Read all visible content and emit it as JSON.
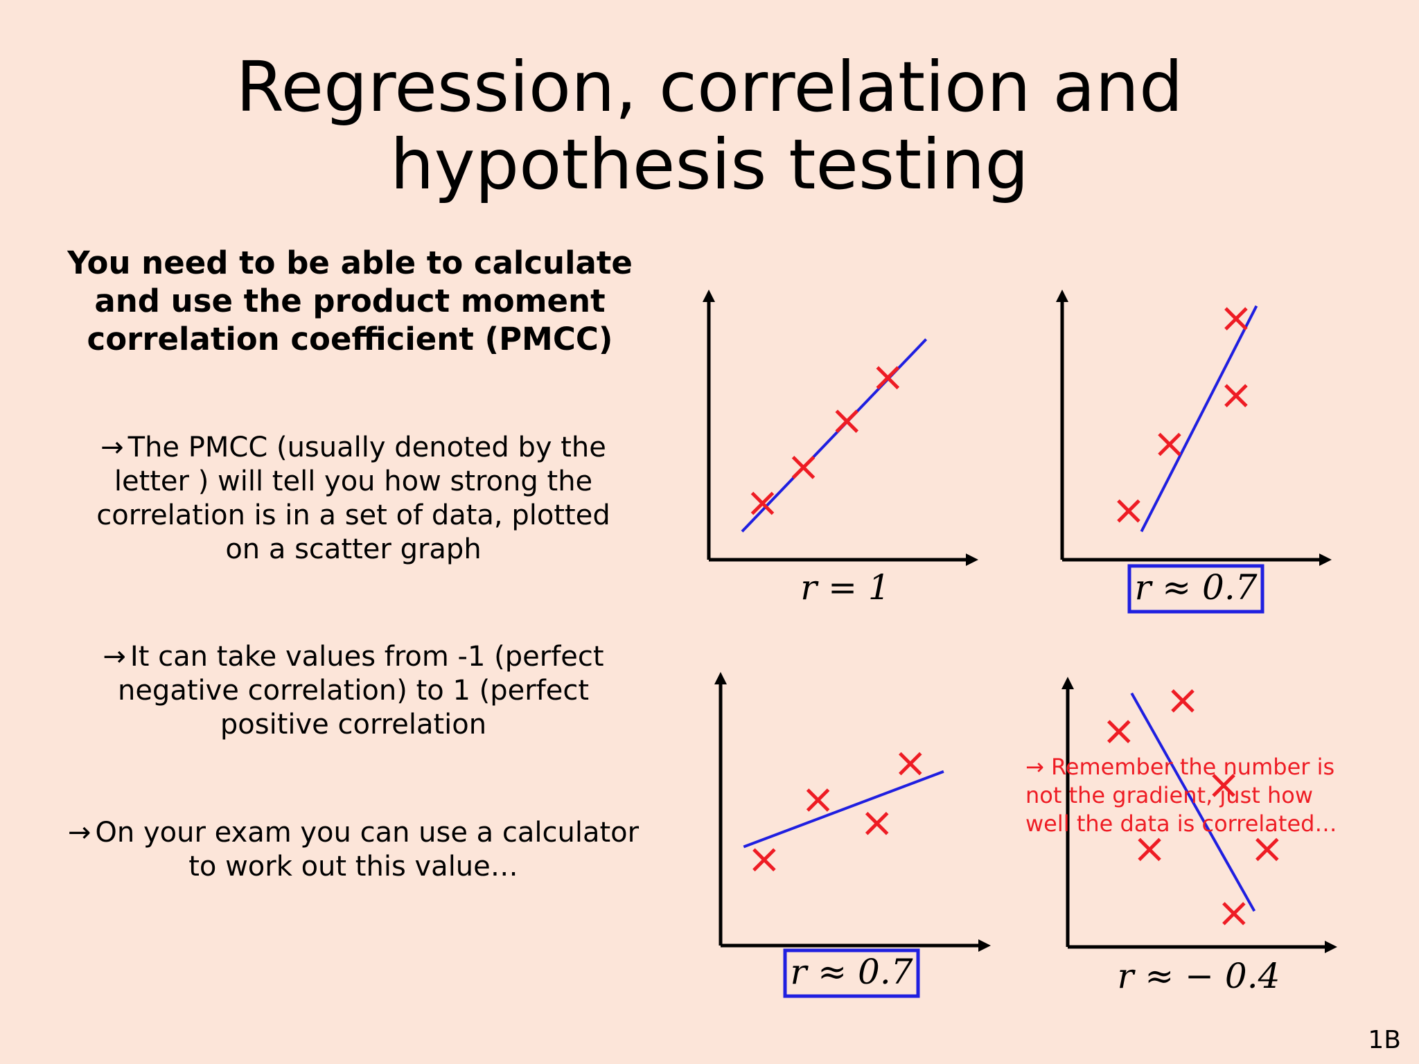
{
  "title": {
    "line1": "Regression, correlation and",
    "line2": "hypothesis testing"
  },
  "intro": {
    "line1": "You need to be able to calculate",
    "line2": "and use the product moment",
    "line3": "correlation coefficient (PMCC)"
  },
  "points": [
    {
      "arrow": "→",
      "lines": [
        "The PMCC (usually denoted by the",
        "letter ) will tell you how strong the",
        "correlation is in a set of data, plotted",
        "on a scatter graph"
      ]
    },
    {
      "arrow": "→",
      "lines": [
        "It can take values from -1 (perfect",
        "negative correlation) to 1 (perfect",
        "positive correlation"
      ]
    },
    {
      "arrow": "→",
      "lines": [
        "On your exam you can use a calculator",
        "to work out this value…"
      ]
    }
  ],
  "note": {
    "lines": [
      "→ Remember the number is",
      "not the gradient, just how",
      "well the data is correlated…"
    ]
  },
  "slide_number": "1B",
  "colors": {
    "background": "#fce5d9",
    "point": "#ee1c24",
    "line": "#1f1fe0",
    "axis": "#000000",
    "note": "#ee1c24",
    "box": "#1f1fe0"
  },
  "chart_data": [
    {
      "type": "scatter",
      "label": "r = 1",
      "boxed": false,
      "xlim": [
        0,
        10
      ],
      "ylim": [
        0,
        10
      ],
      "points": [
        [
          2.1,
          2.2
        ],
        [
          3.7,
          3.6
        ],
        [
          5.4,
          5.4
        ],
        [
          7.0,
          7.1
        ]
      ],
      "fit": [
        [
          1.3,
          1.1
        ],
        [
          8.5,
          8.6
        ]
      ]
    },
    {
      "type": "scatter",
      "label": "r ≈ 0.7",
      "boxed": true,
      "xlim": [
        0,
        10
      ],
      "ylim": [
        0,
        10
      ],
      "points": [
        [
          2.6,
          1.9
        ],
        [
          4.2,
          4.5
        ],
        [
          6.8,
          6.4
        ],
        [
          6.8,
          9.4
        ]
      ],
      "fit": [
        [
          3.1,
          1.1
        ],
        [
          7.6,
          9.9
        ]
      ]
    },
    {
      "type": "scatter",
      "label": "r ≈ 0.7",
      "boxed": true,
      "xlim": [
        0,
        10
      ],
      "ylim": [
        0,
        10
      ],
      "points": [
        [
          1.7,
          3.3
        ],
        [
          3.8,
          5.6
        ],
        [
          6.1,
          4.7
        ],
        [
          7.4,
          7.0
        ]
      ],
      "fit": [
        [
          0.9,
          3.8
        ],
        [
          8.7,
          6.7
        ]
      ]
    },
    {
      "type": "scatter",
      "label": "r ≈ − 0.4",
      "boxed": false,
      "xlim": [
        0,
        10
      ],
      "ylim": [
        0,
        10
      ],
      "points": [
        [
          2.0,
          8.4
        ],
        [
          4.5,
          9.6
        ],
        [
          6.1,
          6.3
        ],
        [
          3.2,
          3.8
        ],
        [
          7.8,
          3.8
        ],
        [
          6.5,
          1.3
        ]
      ],
      "fit": [
        [
          2.5,
          9.9
        ],
        [
          7.3,
          1.4
        ]
      ]
    }
  ]
}
